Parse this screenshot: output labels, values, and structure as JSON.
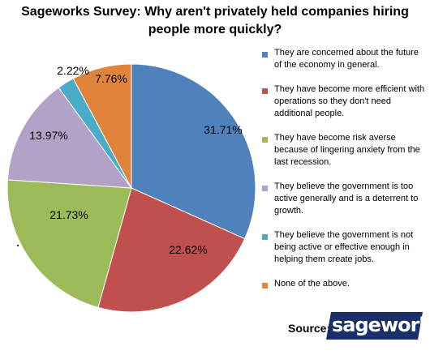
{
  "title_line1": "Sageworks Survey: Why aren't privately held companies hiring",
  "title_line2": "people more quickly?",
  "chart_data": {
    "type": "pie",
    "title": "Sageworks Survey: Why aren't privately held companies hiring people more quickly?",
    "categories": [
      "They are concerned about the future of the economy in general.",
      "They have become more efficient with operations so they don't need additional people.",
      "They have become risk averse because of lingering anxiety from the last recession.",
      "They believe the government is too active generally and is a deterrent to growth.",
      "They believe the government is not being active or effective enough in helping them create jobs.",
      "None of the above."
    ],
    "values": [
      31.71,
      22.62,
      21.73,
      13.97,
      2.22,
      7.76
    ],
    "labels": [
      "31.71%",
      "22.62%",
      "21.73%",
      "13.97%",
      "2.22%",
      "7.76%"
    ],
    "colors": [
      "#4f81bd",
      "#c0504d",
      "#9bbb59",
      "#b3a2c7",
      "#4aacc6",
      "#e0843b"
    ],
    "legend_position": "right"
  },
  "legend": [
    "They are concerned about the future of the economy in general.",
    "They have become more efficient with operations so they don't need additional people.",
    "They have become risk averse because of lingering anxiety from the last recession.",
    "They believe the government  is too active generally and is a deterrent to growth.",
    "They believe the government  is not being active or effective enough in helping them  create jobs.",
    "None of the above."
  ],
  "source_label": "Source:",
  "logo_text": "sageworks"
}
